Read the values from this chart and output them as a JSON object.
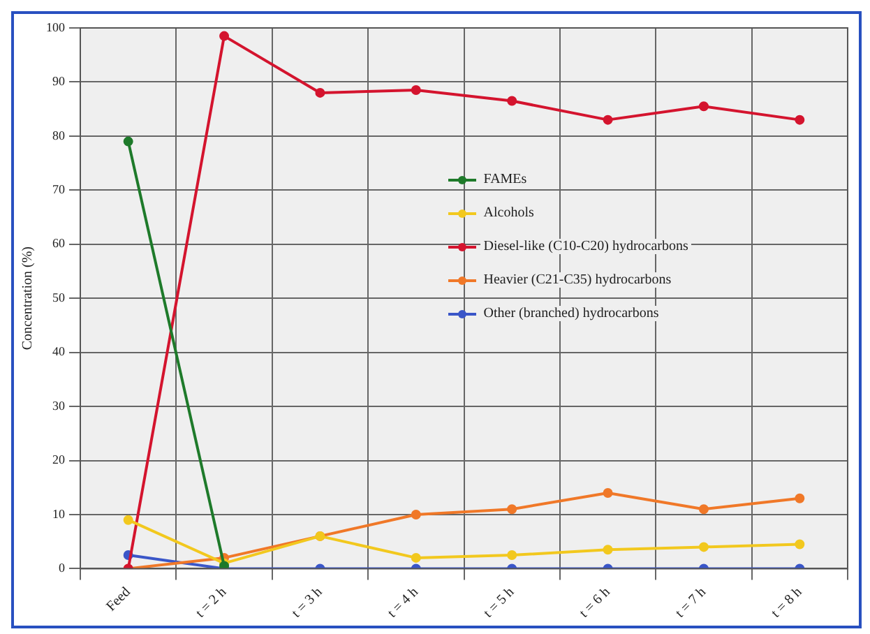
{
  "chart_data": {
    "type": "line",
    "ylabel": "Concentration (%)",
    "categories": [
      "Feed",
      "t = 2 h",
      "t = 3 h",
      "t = 4 h",
      "t = 5 h",
      "t = 6 h",
      "t = 7 h",
      "t = 8 h"
    ],
    "series": [
      {
        "name": "FAMEs",
        "color": "#1e7a2a",
        "values": [
          79,
          0.5,
          null,
          null,
          null,
          null,
          null,
          null
        ]
      },
      {
        "name": "Alcohols",
        "color": "#f2c81e",
        "values": [
          9,
          1,
          6,
          2,
          2.5,
          3.5,
          4,
          4.5
        ]
      },
      {
        "name": "Diesel-like (C10-C20) hydrocarbons",
        "color": "#d4142e",
        "values": [
          0,
          98.5,
          88,
          88.5,
          86.5,
          83,
          85.5,
          83
        ]
      },
      {
        "name": "Heavier (C21-C35) hydrocarbons",
        "color": "#f07828",
        "values": [
          0,
          2,
          6,
          10,
          11,
          14,
          11,
          13
        ]
      },
      {
        "name": "Other (branched) hydrocarbons",
        "color": "#3a56c8",
        "values": [
          2.5,
          0,
          0,
          0,
          0,
          0,
          0,
          0
        ]
      }
    ],
    "ylim": [
      0,
      100
    ],
    "yticks": [
      0,
      10,
      20,
      30,
      40,
      50,
      60,
      70,
      80,
      90,
      100
    ],
    "grid": true,
    "legend": "right",
    "marker": "circle",
    "line_style": "solid"
  }
}
